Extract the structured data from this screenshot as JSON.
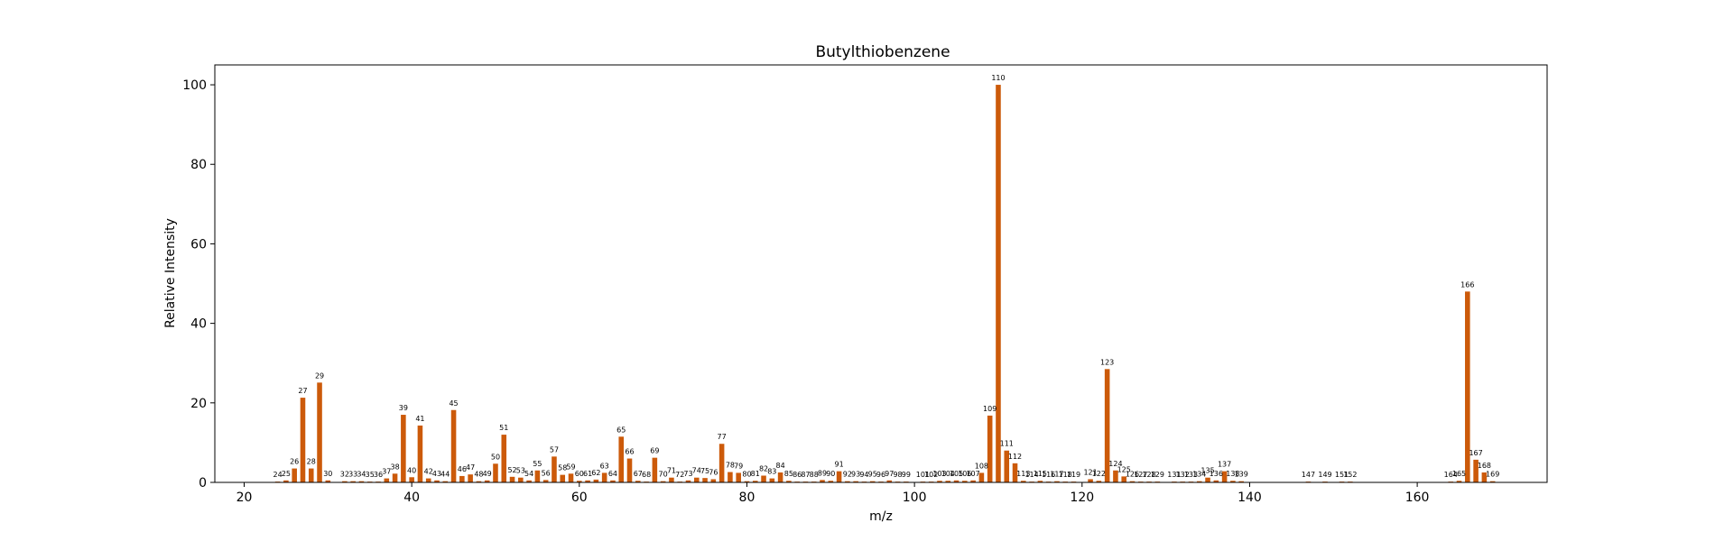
{
  "chart_data": {
    "type": "bar",
    "title": "Butylthiobenzene",
    "xlabel": "m/z",
    "ylabel": "Relative Intensity",
    "xlim": [
      16.5,
      175.5
    ],
    "ylim": [
      0,
      105
    ],
    "xticks": [
      20,
      40,
      60,
      80,
      100,
      120,
      140,
      160
    ],
    "yticks": [
      0,
      20,
      40,
      60,
      80,
      100
    ],
    "bar_color": "#cc5a0a",
    "grid": false,
    "legend": "none",
    "points": [
      {
        "mz": 24,
        "v": 0.2
      },
      {
        "mz": 25,
        "v": 0.5
      },
      {
        "mz": 26,
        "v": 3.5
      },
      {
        "mz": 27,
        "v": 21.3
      },
      {
        "mz": 28,
        "v": 3.5
      },
      {
        "mz": 29,
        "v": 25.1
      },
      {
        "mz": 30,
        "v": 0.5
      },
      {
        "mz": 32,
        "v": 0.3
      },
      {
        "mz": 33,
        "v": 0.3
      },
      {
        "mz": 34,
        "v": 0.3
      },
      {
        "mz": 35,
        "v": 0.2
      },
      {
        "mz": 36,
        "v": 0.2
      },
      {
        "mz": 37,
        "v": 1.0
      },
      {
        "mz": 38,
        "v": 2.2
      },
      {
        "mz": 39,
        "v": 17.0
      },
      {
        "mz": 40,
        "v": 1.3
      },
      {
        "mz": 41,
        "v": 14.3
      },
      {
        "mz": 42,
        "v": 1.0
      },
      {
        "mz": 43,
        "v": 0.5
      },
      {
        "mz": 44,
        "v": 0.3
      },
      {
        "mz": 45,
        "v": 18.2
      },
      {
        "mz": 46,
        "v": 1.6
      },
      {
        "mz": 47,
        "v": 2.0
      },
      {
        "mz": 48,
        "v": 0.3
      },
      {
        "mz": 49,
        "v": 0.5
      },
      {
        "mz": 50,
        "v": 4.7
      },
      {
        "mz": 51,
        "v": 12.0
      },
      {
        "mz": 52,
        "v": 1.4
      },
      {
        "mz": 53,
        "v": 1.2
      },
      {
        "mz": 54,
        "v": 0.5
      },
      {
        "mz": 55,
        "v": 3.0
      },
      {
        "mz": 56,
        "v": 0.6
      },
      {
        "mz": 57,
        "v": 6.5
      },
      {
        "mz": 58,
        "v": 1.9
      },
      {
        "mz": 59,
        "v": 2.2
      },
      {
        "mz": 60,
        "v": 0.4
      },
      {
        "mz": 61,
        "v": 0.5
      },
      {
        "mz": 62,
        "v": 0.7
      },
      {
        "mz": 63,
        "v": 2.4
      },
      {
        "mz": 64,
        "v": 0.5
      },
      {
        "mz": 65,
        "v": 11.5
      },
      {
        "mz": 66,
        "v": 6.0
      },
      {
        "mz": 67,
        "v": 0.4
      },
      {
        "mz": 68,
        "v": 0.2
      },
      {
        "mz": 69,
        "v": 6.2
      },
      {
        "mz": 70,
        "v": 0.3
      },
      {
        "mz": 71,
        "v": 1.2
      },
      {
        "mz": 72,
        "v": 0.2
      },
      {
        "mz": 73,
        "v": 0.5
      },
      {
        "mz": 74,
        "v": 1.2
      },
      {
        "mz": 75,
        "v": 1.1
      },
      {
        "mz": 76,
        "v": 0.8
      },
      {
        "mz": 77,
        "v": 9.7
      },
      {
        "mz": 78,
        "v": 2.6
      },
      {
        "mz": 79,
        "v": 2.4
      },
      {
        "mz": 80,
        "v": 0.3
      },
      {
        "mz": 81,
        "v": 0.4
      },
      {
        "mz": 82,
        "v": 1.7
      },
      {
        "mz": 83,
        "v": 1.0
      },
      {
        "mz": 84,
        "v": 2.5
      },
      {
        "mz": 85,
        "v": 0.4
      },
      {
        "mz": 86,
        "v": 0.2
      },
      {
        "mz": 87,
        "v": 0.2
      },
      {
        "mz": 88,
        "v": 0.2
      },
      {
        "mz": 89,
        "v": 0.6
      },
      {
        "mz": 90,
        "v": 0.4
      },
      {
        "mz": 91,
        "v": 2.8
      },
      {
        "mz": 92,
        "v": 0.3
      },
      {
        "mz": 93,
        "v": 0.3
      },
      {
        "mz": 94,
        "v": 0.2
      },
      {
        "mz": 95,
        "v": 0.3
      },
      {
        "mz": 96,
        "v": 0.2
      },
      {
        "mz": 97,
        "v": 0.5
      },
      {
        "mz": 98,
        "v": 0.2
      },
      {
        "mz": 99,
        "v": 0.2
      },
      {
        "mz": 101,
        "v": 0.2
      },
      {
        "mz": 102,
        "v": 0.2
      },
      {
        "mz": 103,
        "v": 0.4
      },
      {
        "mz": 104,
        "v": 0.4
      },
      {
        "mz": 105,
        "v": 0.5
      },
      {
        "mz": 106,
        "v": 0.4
      },
      {
        "mz": 107,
        "v": 0.5
      },
      {
        "mz": 108,
        "v": 2.4
      },
      {
        "mz": 109,
        "v": 16.8
      },
      {
        "mz": 110,
        "v": 100.0
      },
      {
        "mz": 111,
        "v": 8.0
      },
      {
        "mz": 112,
        "v": 4.8
      },
      {
        "mz": 113,
        "v": 0.4
      },
      {
        "mz": 114,
        "v": 0.2
      },
      {
        "mz": 115,
        "v": 0.4
      },
      {
        "mz": 116,
        "v": 0.2
      },
      {
        "mz": 117,
        "v": 0.3
      },
      {
        "mz": 118,
        "v": 0.2
      },
      {
        "mz": 119,
        "v": 0.2
      },
      {
        "mz": 121,
        "v": 0.8
      },
      {
        "mz": 122,
        "v": 0.4
      },
      {
        "mz": 123,
        "v": 28.5
      },
      {
        "mz": 124,
        "v": 3.0
      },
      {
        "mz": 125,
        "v": 1.5
      },
      {
        "mz": 126,
        "v": 0.3
      },
      {
        "mz": 127,
        "v": 0.2
      },
      {
        "mz": 128,
        "v": 0.2
      },
      {
        "mz": 129,
        "v": 0.2
      },
      {
        "mz": 131,
        "v": 0.2
      },
      {
        "mz": 132,
        "v": 0.2
      },
      {
        "mz": 133,
        "v": 0.2
      },
      {
        "mz": 134,
        "v": 0.3
      },
      {
        "mz": 135,
        "v": 1.2
      },
      {
        "mz": 136,
        "v": 0.5
      },
      {
        "mz": 137,
        "v": 2.8
      },
      {
        "mz": 138,
        "v": 0.4
      },
      {
        "mz": 139,
        "v": 0.3
      },
      {
        "mz": 147,
        "v": 0.2
      },
      {
        "mz": 149,
        "v": 0.2
      },
      {
        "mz": 151,
        "v": 0.2
      },
      {
        "mz": 152,
        "v": 0.2
      },
      {
        "mz": 164,
        "v": 0.2
      },
      {
        "mz": 165,
        "v": 0.4
      },
      {
        "mz": 166,
        "v": 48.0
      },
      {
        "mz": 167,
        "v": 5.7
      },
      {
        "mz": 168,
        "v": 2.5
      },
      {
        "mz": 169,
        "v": 0.3
      }
    ]
  }
}
